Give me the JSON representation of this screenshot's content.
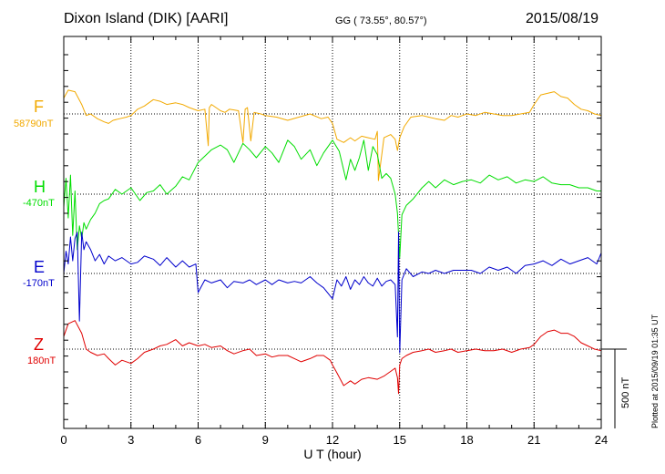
{
  "header": {
    "station": "Dixon Island (DIK)  [AARI]",
    "coords": "GG ( 73.55°,  80.57°)",
    "date": "2015/08/19"
  },
  "footer": {
    "plotted": "Plotted at 2015/09/19 01:35 UT",
    "scale": "500 nT"
  },
  "chart_data": {
    "type": "line",
    "xlabel": "U T (hour)",
    "xlim": [
      0,
      24
    ],
    "xticks": [
      0,
      3,
      6,
      9,
      12,
      15,
      18,
      21,
      24
    ],
    "ylabel": "",
    "scale_bar_nT": 500,
    "grid": true,
    "series": [
      {
        "name": "F",
        "baseline": "58790nT",
        "color": "#f2a900",
        "t": [
          0,
          0.2,
          0.5,
          0.8,
          1,
          1.2,
          1.5,
          1.8,
          2,
          2.2,
          2.5,
          2.8,
          3,
          3.3,
          3.6,
          3.8,
          4,
          4.3,
          4.6,
          5,
          5.3,
          5.6,
          6,
          6.3,
          6.45,
          6.5,
          6.6,
          7,
          7.2,
          7.4,
          7.8,
          8,
          8.1,
          8.2,
          8.35,
          8.5,
          8.8,
          9,
          9.5,
          10,
          10.5,
          11,
          11.5,
          11.8,
          12,
          12.2,
          12.5,
          12.8,
          13,
          13.3,
          13.6,
          13.9,
          14,
          14.05,
          14.3,
          14.6,
          14.8,
          14.9,
          15,
          15.2,
          15.5,
          16,
          16.3,
          16.6,
          17,
          17.3,
          17.6,
          18,
          18.4,
          18.8,
          19.2,
          19.6,
          20,
          20.4,
          20.8,
          21,
          21.3,
          21.6,
          21.9,
          22.2,
          22.5,
          22.8,
          23.1,
          23.4,
          23.7,
          24
        ],
        "v": [
          100,
          150,
          140,
          60,
          -10,
          0,
          -30,
          -50,
          -60,
          -40,
          -30,
          -20,
          -10,
          30,
          50,
          70,
          90,
          80,
          60,
          70,
          60,
          40,
          20,
          30,
          -200,
          40,
          60,
          20,
          10,
          30,
          20,
          -180,
          30,
          40,
          -170,
          10,
          0,
          -10,
          -20,
          -40,
          -20,
          0,
          -30,
          -20,
          -60,
          -160,
          -180,
          -150,
          -170,
          -140,
          -150,
          -160,
          -110,
          -420,
          -150,
          -130,
          -160,
          -230,
          -150,
          -80,
          -20,
          -10,
          -20,
          -30,
          -40,
          -10,
          -20,
          0,
          -10,
          10,
          0,
          -10,
          -10,
          0,
          10,
          60,
          120,
          130,
          140,
          110,
          100,
          60,
          30,
          20,
          0,
          -10
        ]
      },
      {
        "name": "H",
        "baseline": "-470nT",
        "color": "#00dd00",
        "t": [
          0,
          0.1,
          0.2,
          0.3,
          0.4,
          0.5,
          0.6,
          0.7,
          0.8,
          0.9,
          1,
          1.2,
          1.4,
          1.6,
          1.8,
          2,
          2.3,
          2.6,
          3,
          3.4,
          3.7,
          4,
          4.3,
          4.6,
          5,
          5.3,
          5.6,
          6,
          6.3,
          6.6,
          7,
          7.3,
          7.6,
          8,
          8.3,
          8.6,
          9,
          9.3,
          9.6,
          10,
          10.3,
          10.6,
          11,
          11.3,
          11.6,
          12,
          12.3,
          12.6,
          12.8,
          13,
          13.2,
          13.4,
          13.6,
          13.8,
          14,
          14.2,
          14.4,
          14.6,
          14.8,
          14.9,
          15,
          15.1,
          15.3,
          15.6,
          16,
          16.3,
          16.6,
          17,
          17.4,
          17.8,
          18.2,
          18.6,
          19,
          19.4,
          19.8,
          20.2,
          20.6,
          21,
          21.4,
          21.8,
          22.2,
          22.6,
          23,
          23.4,
          23.8,
          24
        ],
        "v": [
          -80,
          100,
          -150,
          120,
          -260,
          20,
          -350,
          -200,
          -280,
          -180,
          -220,
          -160,
          -120,
          -60,
          -40,
          -30,
          30,
          0,
          40,
          -40,
          10,
          20,
          60,
          0,
          50,
          110,
          90,
          200,
          240,
          280,
          310,
          280,
          200,
          320,
          280,
          230,
          300,
          260,
          200,
          340,
          300,
          220,
          280,
          180,
          260,
          340,
          270,
          90,
          220,
          150,
          230,
          340,
          150,
          300,
          250,
          100,
          130,
          100,
          0,
          -120,
          -400,
          -130,
          -70,
          -30,
          40,
          80,
          40,
          90,
          60,
          80,
          90,
          70,
          120,
          90,
          110,
          70,
          90,
          80,
          110,
          70,
          60,
          60,
          40,
          40,
          20,
          20
        ]
      },
      {
        "name": "E",
        "baseline": "-170nT",
        "color": "#0000cc",
        "t": [
          0,
          0.1,
          0.2,
          0.3,
          0.4,
          0.5,
          0.6,
          0.7,
          0.8,
          0.9,
          1,
          1.2,
          1.4,
          1.6,
          1.8,
          2,
          2.3,
          2.6,
          3,
          3.3,
          3.6,
          4,
          4.3,
          4.6,
          5,
          5.3,
          5.6,
          5.9,
          6,
          6.3,
          6.6,
          7,
          7.3,
          7.6,
          8,
          8.3,
          8.6,
          9,
          9.3,
          9.6,
          10,
          10.3,
          10.6,
          11,
          11.3,
          11.6,
          12,
          12.2,
          12.4,
          12.6,
          12.8,
          13,
          13.2,
          13.4,
          13.6,
          13.8,
          14,
          14.2,
          14.4,
          14.6,
          14.8,
          14.9,
          14.95,
          15,
          15.1,
          15.3,
          15.6,
          16,
          16.3,
          16.6,
          17,
          17.4,
          17.8,
          18.2,
          18.6,
          19,
          19.4,
          19.8,
          20.2,
          20.6,
          21,
          21.4,
          21.8,
          22.2,
          22.6,
          23,
          23.4,
          23.8,
          24
        ],
        "v": [
          0,
          140,
          60,
          230,
          80,
          220,
          260,
          -300,
          260,
          150,
          200,
          150,
          80,
          120,
          60,
          110,
          80,
          100,
          60,
          70,
          110,
          90,
          50,
          100,
          40,
          80,
          40,
          60,
          -120,
          -40,
          -60,
          -40,
          -90,
          -50,
          -60,
          -40,
          -70,
          -40,
          -70,
          -40,
          -60,
          -50,
          -60,
          -20,
          -60,
          -90,
          -160,
          -40,
          -80,
          -20,
          -100,
          -40,
          -70,
          -20,
          -60,
          -80,
          -30,
          -80,
          -50,
          -40,
          -70,
          -400,
          260,
          -500,
          -40,
          30,
          -20,
          10,
          0,
          20,
          0,
          20,
          20,
          20,
          0,
          40,
          20,
          40,
          0,
          50,
          60,
          80,
          50,
          90,
          60,
          80,
          100,
          60,
          130
        ]
      },
      {
        "name": "Z",
        "baseline": "180nT",
        "color": "#e00000",
        "t": [
          0,
          0.2,
          0.5,
          0.8,
          1,
          1.2,
          1.5,
          1.8,
          2,
          2.3,
          2.6,
          3,
          3.3,
          3.6,
          4,
          4.3,
          4.6,
          5,
          5.3,
          5.6,
          6,
          6.3,
          6.6,
          7,
          7.3,
          7.6,
          8,
          8.3,
          8.6,
          9,
          9.3,
          9.6,
          10,
          10.3,
          10.6,
          11,
          11.3,
          11.6,
          11.9,
          12,
          12.2,
          12.5,
          12.8,
          13,
          13.3,
          13.6,
          14,
          14.3,
          14.6,
          14.8,
          14.9,
          14.95,
          15,
          15.1,
          15.3,
          15.6,
          16,
          16.3,
          16.6,
          17,
          17.3,
          17.6,
          18,
          18.4,
          18.8,
          19.2,
          19.6,
          20,
          20.4,
          20.8,
          21,
          21.3,
          21.6,
          21.9,
          22.2,
          22.5,
          22.8,
          23.1,
          23.4,
          23.7,
          24
        ],
        "v": [
          80,
          160,
          180,
          100,
          0,
          -20,
          -40,
          -30,
          -60,
          -100,
          -70,
          -90,
          -60,
          -20,
          0,
          20,
          30,
          60,
          20,
          40,
          20,
          30,
          10,
          20,
          -10,
          -30,
          -10,
          0,
          -40,
          -30,
          -50,
          -40,
          -40,
          -60,
          -80,
          -60,
          -40,
          -40,
          -70,
          -100,
          -150,
          -230,
          -200,
          -220,
          -190,
          -180,
          -190,
          -170,
          -140,
          -120,
          -180,
          -280,
          -100,
          -60,
          -40,
          -20,
          -10,
          0,
          -20,
          -10,
          0,
          -20,
          -10,
          0,
          -10,
          -10,
          0,
          -20,
          0,
          10,
          30,
          80,
          110,
          120,
          100,
          100,
          80,
          40,
          20,
          0,
          -10
        ]
      }
    ]
  }
}
